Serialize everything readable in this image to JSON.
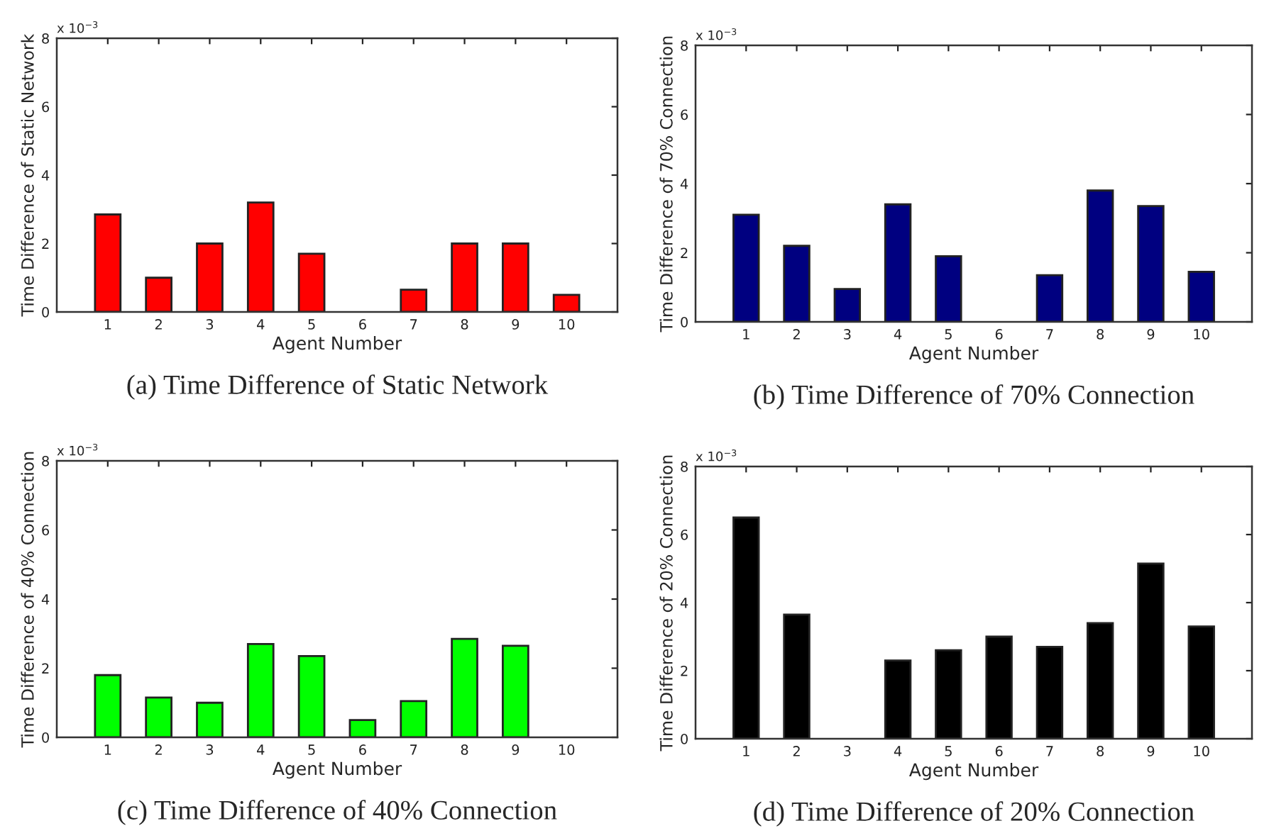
{
  "chart_data": [
    {
      "type": "bar",
      "title": "(a) Time Difference of Static Network",
      "xlabel": "Agent Number",
      "ylabel": "Time Difference of Static Network",
      "annotations": [
        "x 10$^{−3}$"
      ],
      "categories": [
        "1",
        "2",
        "3",
        "4",
        "5",
        "6",
        "7",
        "8",
        "9",
        "10"
      ],
      "values": [
        2.85,
        1.0,
        2.0,
        3.2,
        1.7,
        null,
        0.65,
        2.0,
        2.0,
        0.5
      ],
      "color": "#ff0000",
      "ylim": [
        0,
        8
      ],
      "yticks": [
        0,
        2,
        4,
        6,
        8
      ],
      "grid": false
    },
    {
      "type": "bar",
      "title": "(b) Time Difference of 70% Connection",
      "xlabel": "Agent Number",
      "ylabel": "Time Difference of 70% Connection",
      "annotations": [
        "x 10$^{−3}$"
      ],
      "categories": [
        "1",
        "2",
        "3",
        "4",
        "5",
        "6",
        "7",
        "8",
        "9",
        "10"
      ],
      "values": [
        3.1,
        2.2,
        0.95,
        3.4,
        1.9,
        null,
        1.35,
        3.8,
        3.35,
        1.45
      ],
      "color": "#000080",
      "ylim": [
        0,
        8
      ],
      "yticks": [
        0,
        2,
        4,
        6,
        8
      ],
      "grid": false
    },
    {
      "type": "bar",
      "title": "(c) Time Difference of 40% Connection",
      "xlabel": "Agent Number",
      "ylabel": "Time Difference of 40% Connection",
      "annotations": [
        "x 10$^{−3}$"
      ],
      "categories": [
        "1",
        "2",
        "3",
        "4",
        "5",
        "6",
        "7",
        "8",
        "9",
        "10"
      ],
      "values": [
        1.8,
        1.15,
        1.0,
        2.7,
        2.35,
        0.5,
        1.05,
        2.85,
        2.65,
        null
      ],
      "color": "#00ff00",
      "ylim": [
        0,
        8
      ],
      "yticks": [
        0,
        2,
        4,
        6,
        8
      ],
      "grid": false
    },
    {
      "type": "bar",
      "title": "(d) Time Difference of 20% Connection",
      "xlabel": "Agent Number",
      "ylabel": "Time Difference of 20% Connection",
      "annotations": [
        "x 10$^{−3}$"
      ],
      "categories": [
        "1",
        "2",
        "3",
        "4",
        "5",
        "6",
        "7",
        "8",
        "9",
        "10"
      ],
      "values": [
        6.5,
        3.65,
        null,
        2.3,
        2.6,
        3.0,
        2.7,
        3.4,
        5.15,
        3.3
      ],
      "color": "#000000",
      "ylim": [
        0,
        8
      ],
      "yticks": [
        0,
        2,
        4,
        6,
        8
      ],
      "grid": false
    }
  ]
}
